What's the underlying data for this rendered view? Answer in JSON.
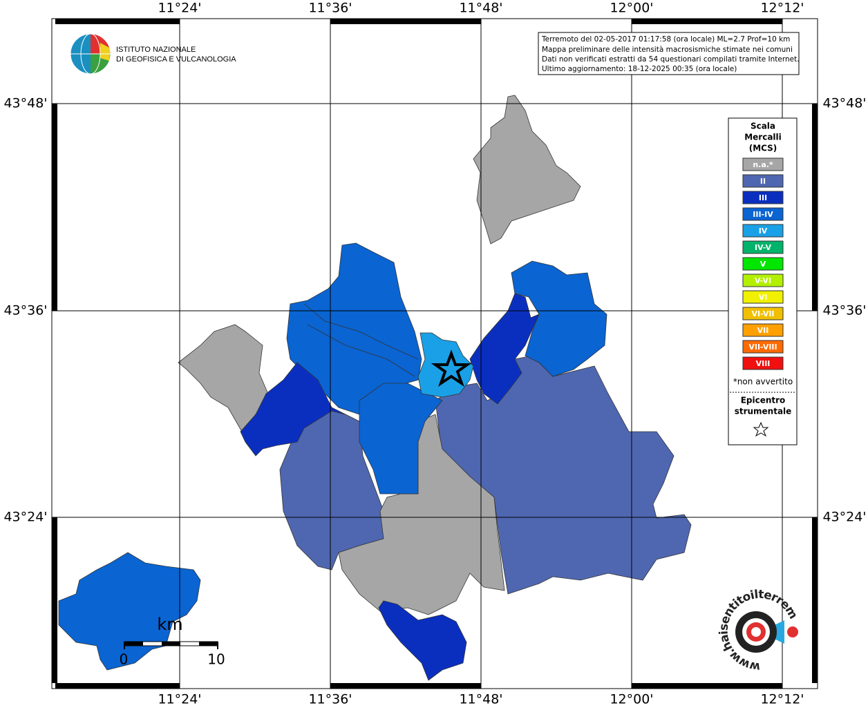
{
  "map": {
    "lon_labels": [
      "11°24'",
      "11°36'",
      "11°48'",
      "12°00'",
      "12°12'"
    ],
    "lat_labels": [
      "43°48'",
      "43°36'",
      "43°24'"
    ]
  },
  "header": {
    "logo_lines": [
      "ISTITUTO NAZIONALE",
      "DI GEOFISICA E VULCANOLOGIA"
    ]
  },
  "info": {
    "lines": [
      "Terremoto del 02-05-2017 01:17:58 (ora locale) ML=2.7 Prof=10 km",
      "Mappa preliminare delle intensità macrosismiche stimate nei comuni",
      "Dati non verificati estratti da 54 questionari compilati tramite Internet.",
      "Ultimo aggiornamento: 18-12-2025 00:35 (ora locale)"
    ]
  },
  "legend": {
    "title": [
      "Scala",
      "Mercalli",
      "(MCS)"
    ],
    "items": [
      {
        "label": "n.a.*",
        "color": "#a6a6a6"
      },
      {
        "label": "II",
        "color": "#4f67b0"
      },
      {
        "label": "III",
        "color": "#0a2fbf"
      },
      {
        "label": "III-IV",
        "color": "#0a64d2"
      },
      {
        "label": "IV",
        "color": "#1aa0e6"
      },
      {
        "label": "IV-V",
        "color": "#00b36b"
      },
      {
        "label": "V",
        "color": "#00e600"
      },
      {
        "label": "V-VI",
        "color": "#b3f000"
      },
      {
        "label": "VI",
        "color": "#f0f000"
      },
      {
        "label": "VI-VII",
        "color": "#f0c000"
      },
      {
        "label": "VII",
        "color": "#ffa000"
      },
      {
        "label": "VII-VIII",
        "color": "#ff6a00"
      },
      {
        "label": "VIII",
        "color": "#f01010"
      }
    ],
    "note": "*non avvertito",
    "epicenter": [
      "Epicentro",
      "strumentale"
    ]
  },
  "scale": {
    "unit": "km",
    "labels": [
      "0",
      "10"
    ]
  },
  "footer_logo": "www.haisentitoilterremoto.it"
}
